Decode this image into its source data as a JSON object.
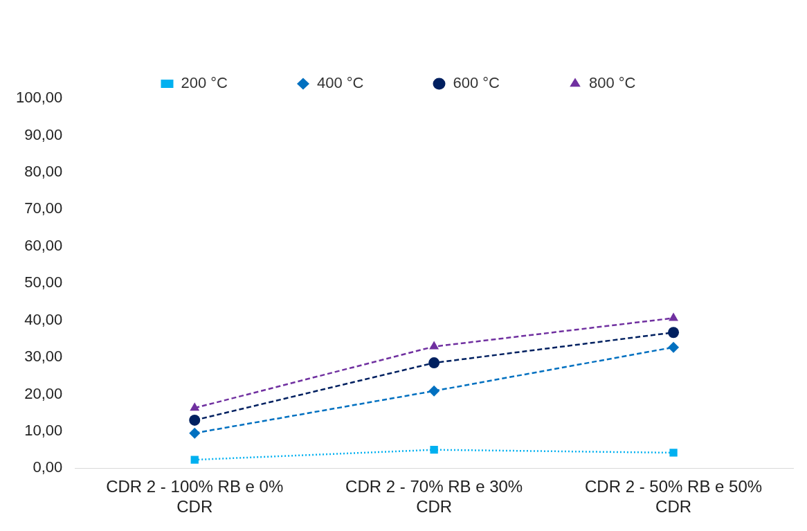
{
  "chart_data": {
    "type": "line",
    "categories": [
      "CDR 2 - 100% RB e 0% CDR",
      "CDR 2 - 70% RB e 30% CDR",
      "CDR 2 - 50% RB e 50% CDR"
    ],
    "series": [
      {
        "name": "200 °C",
        "color": "#00b0f0",
        "marker": "square",
        "line_style": "dotted",
        "values": [
          2.3,
          5.0,
          4.2
        ]
      },
      {
        "name": "400 °C",
        "color": "#0070c0",
        "marker": "diamond",
        "line_style": "dashed",
        "values": [
          9.5,
          20.9,
          32.7
        ]
      },
      {
        "name": "600 °C",
        "color": "#002060",
        "marker": "circle",
        "line_style": "dashed",
        "values": [
          13.0,
          28.5,
          36.7
        ]
      },
      {
        "name": "800 °C",
        "color": "#7030a0",
        "marker": "triangle",
        "line_style": "dashed",
        "values": [
          16.3,
          32.9,
          40.6
        ]
      }
    ],
    "ylim": [
      0,
      100
    ],
    "yticks": [
      {
        "value": 0,
        "label": "0,00"
      },
      {
        "value": 10,
        "label": "10,00"
      },
      {
        "value": 20,
        "label": "20,00"
      },
      {
        "value": 30,
        "label": "30,00"
      },
      {
        "value": 40,
        "label": "40,00"
      },
      {
        "value": 50,
        "label": "50,00"
      },
      {
        "value": 60,
        "label": "60,00"
      },
      {
        "value": 70,
        "label": "70,00"
      },
      {
        "value": 80,
        "label": "80,00"
      },
      {
        "value": 90,
        "label": "90,00"
      },
      {
        "value": 100,
        "label": "100,00"
      }
    ],
    "grid": false,
    "legend": "top"
  }
}
